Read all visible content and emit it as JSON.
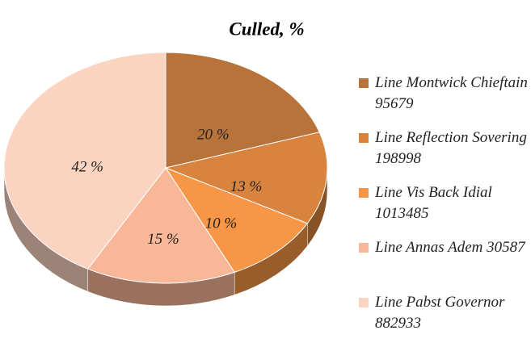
{
  "chart_data": {
    "type": "pie",
    "title": "Culled, %",
    "categories": [
      "Line  Montwick Chieftain 95679",
      "Line  Reflection Sovering 198998",
      "Line  Vis Back Idial 1013485",
      "Line  Annas Adem 30587",
      "Line  Pabst Governor 882933"
    ],
    "values": [
      20,
      13,
      10,
      15,
      42
    ],
    "value_labels": [
      "20 %",
      "13 %",
      "10 %",
      "15 %",
      "42 %"
    ],
    "colors": [
      "#b8733a",
      "#d9843e",
      "#f79646",
      "#f7b798",
      "#fbd4c1"
    ],
    "legend": "right"
  }
}
